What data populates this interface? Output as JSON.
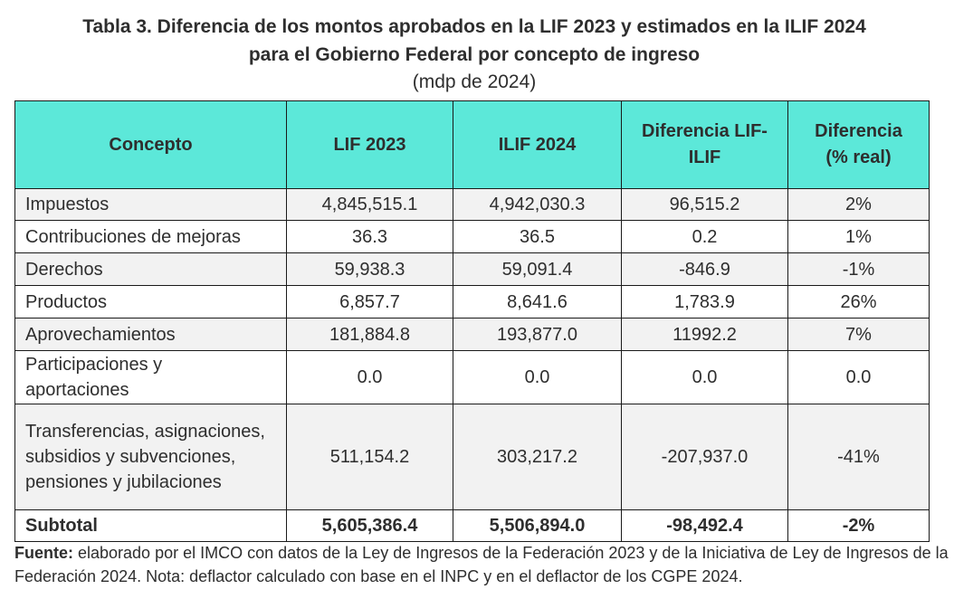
{
  "title": {
    "line1": "Tabla 3. Diferencia de los montos aprobados en la LIF 2023 y estimados en la ILIF 2024",
    "line2": "para el Gobierno Federal por concepto de ingreso",
    "units": "(mdp de 2024)"
  },
  "table": {
    "headers": {
      "concepto": "Concepto",
      "lif": "LIF 2023",
      "ilif": "ILIF 2024",
      "diff_line1": "Diferencia LIF-",
      "diff_line2": "ILIF",
      "pct_line1": "Diferencia",
      "pct_line2": "(% real)"
    },
    "rows": [
      {
        "concepto": "Impuestos",
        "lif": "4,845,515.1",
        "ilif": "4,942,030.3",
        "diff": "96,515.2",
        "pct": "2%"
      },
      {
        "concepto": "Contribuciones de mejoras",
        "lif": "36.3",
        "ilif": "36.5",
        "diff": "0.2",
        "pct": "1%"
      },
      {
        "concepto": "Derechos",
        "lif": "59,938.3",
        "ilif": "59,091.4",
        "diff": "-846.9",
        "pct": "-1%"
      },
      {
        "concepto": "Productos",
        "lif": "6,857.7",
        "ilif": "8,641.6",
        "diff": "1,783.9",
        "pct": "26%"
      },
      {
        "concepto": "Aprovechamientos",
        "lif": "181,884.8",
        "ilif": "193,877.0",
        "diff": "11992.2",
        "pct": "7%"
      },
      {
        "concepto": "Participaciones y aportaciones",
        "lif": "0.0",
        "ilif": "0.0",
        "diff": "0.0",
        "pct": "0.0"
      },
      {
        "concepto": "Transferencias, asignaciones, subsidios y subvenciones, pensiones y jubilaciones",
        "lif": "511,154.2",
        "ilif": "303,217.2",
        "diff": "-207,937.0",
        "pct": "-41%"
      }
    ],
    "subtotal": {
      "concepto": "Subtotal",
      "lif": "5,605,386.4",
      "ilif": "5,506,894.0",
      "diff": "-98,492.4",
      "pct": "-2%"
    }
  },
  "note": {
    "label": "Fuente:",
    "text": " elaborado por el IMCO con datos de la Ley de Ingresos de la Federación 2023 y de la Iniciativa de Ley de Ingresos de la Federación 2024. Nota: deflactor calculado con base en el INPC y en el deflactor de los CGPE 2024."
  },
  "colors": {
    "header_bg": "#5ce8d9",
    "shaded_row": "#f2f2f2"
  }
}
